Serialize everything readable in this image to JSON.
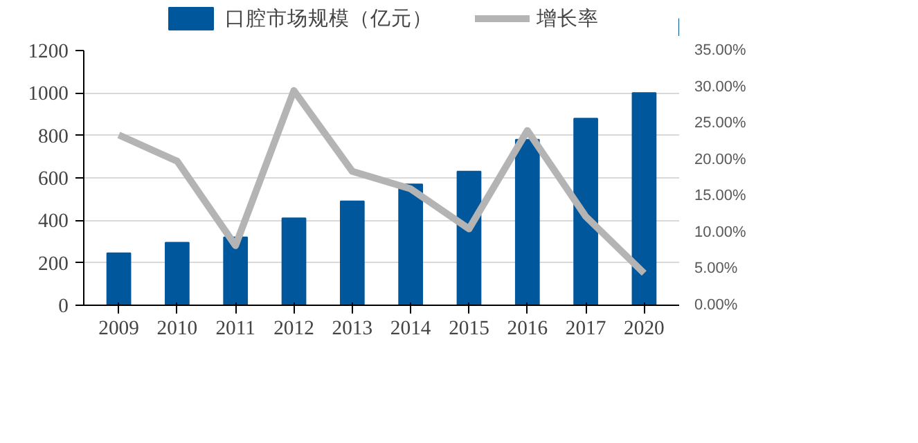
{
  "chart_data": {
    "type": "bar",
    "categories": [
      "2009",
      "2010",
      "2011",
      "2012",
      "2013",
      "2014",
      "2015",
      "2016",
      "2017",
      "2020"
    ],
    "series": [
      {
        "name": "口腔市场规模（亿元）",
        "color": "#00579b",
        "values": [
          245,
          295,
          320,
          410,
          490,
          570,
          630,
          780,
          880,
          1000
        ]
      },
      {
        "name": "增长率",
        "type": "line",
        "axis": "y2",
        "color": "#b4b4b4",
        "values": [
          23.4,
          19.8,
          8.2,
          29.5,
          18.4,
          16.0,
          10.5,
          24.0,
          12.2,
          4.4
        ]
      }
    ],
    "ylim": [
      0,
      1200
    ],
    "yticks": [
      0,
      200,
      400,
      600,
      800,
      1000,
      1200
    ],
    "y2lim": [
      0,
      35
    ],
    "y2ticks": [
      {
        "value": 0,
        "label": "0.00%"
      },
      {
        "value": 5,
        "label": "5.00%"
      },
      {
        "value": 10,
        "label": "10.00%"
      },
      {
        "value": 15,
        "label": "15.00%"
      },
      {
        "value": 20,
        "label": "20.00%"
      },
      {
        "value": 25,
        "label": "25.00%"
      },
      {
        "value": 30,
        "label": "30.00%"
      },
      {
        "value": 35,
        "label": "35.00%"
      }
    ],
    "grid": "y",
    "legend": "top",
    "marker": "none"
  }
}
